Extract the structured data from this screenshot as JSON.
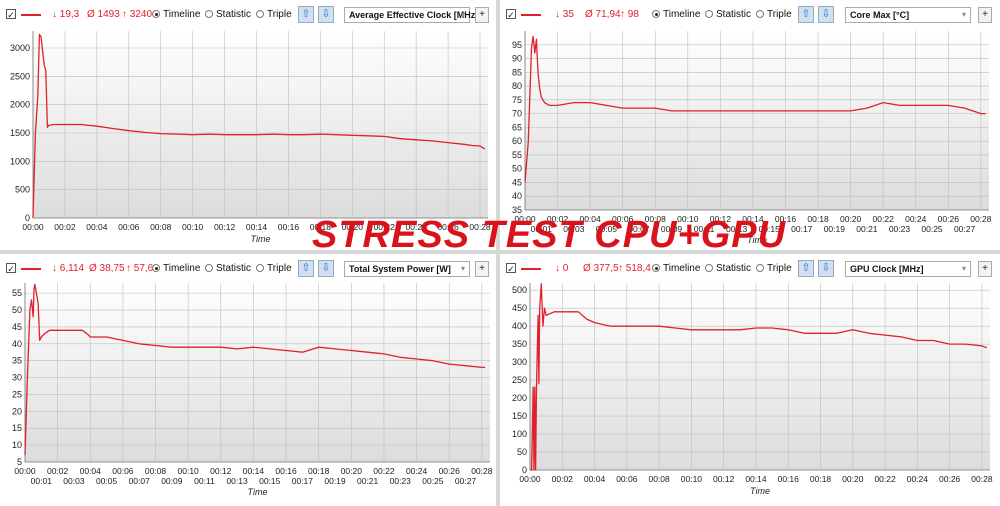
{
  "overlay_title": "STRESS TEST CPU+GPU",
  "colors": {
    "series": "#e0202a",
    "plot_bg_top": "#ffffff",
    "plot_bg_bottom": "#dcdcdc",
    "grid": "#bdbdbd"
  },
  "common": {
    "checkbox": "✓",
    "radio_timeline": "Timeline",
    "radio_statistic": "Statistic",
    "radio_triple": "Triple",
    "up_arrow": "⇧",
    "down_arrow": "⇩",
    "plus": "+",
    "chevron": "▾"
  },
  "panels": [
    {
      "stats": {
        "min": "↓ 19,3",
        "avg": "Ø 1493",
        "max": "↑ 3240"
      },
      "dropdown": "Average Effective Clock [MHz]"
    },
    {
      "stats": {
        "min": "↓ 35",
        "avg": "Ø 71,94",
        "max": "↑ 98"
      },
      "dropdown": "Core Max [°C]"
    },
    {
      "stats": {
        "min": "↓ 6,114",
        "avg": "Ø 38,75",
        "max": "↑ 57,6"
      },
      "dropdown": "Total System Power [W]"
    },
    {
      "stats": {
        "min": "↓ 0",
        "avg": "Ø 377,5",
        "max": "↑ 518,4"
      },
      "dropdown": "GPU Clock [MHz]"
    }
  ],
  "chart_data": [
    {
      "type": "line",
      "xlabel": "Time",
      "ylabel": "",
      "x_unit": "minutes",
      "xlim": [
        0,
        28.5
      ],
      "ylim": [
        0,
        3300
      ],
      "yticks": [
        0,
        500,
        1000,
        1500,
        2000,
        2500,
        3000
      ],
      "xticks_top": [
        "00:00",
        "00:02",
        "00:04",
        "00:06",
        "00:08",
        "00:10",
        "00:12",
        "00:14",
        "00:16",
        "00:18",
        "00:20",
        "00:22",
        "00:24",
        "00:26",
        "00:28"
      ],
      "xticks_bottom": [],
      "series": [
        {
          "x": [
            0,
            0.15,
            0.3,
            0.4,
            0.5,
            0.7,
            0.8,
            0.9,
            1.0,
            1.1,
            1.3,
            2,
            3,
            4,
            5,
            6,
            7,
            8,
            9,
            10,
            11,
            12,
            13,
            14,
            15,
            16,
            17,
            18,
            19,
            20,
            21,
            22,
            23,
            24,
            25,
            26,
            27,
            27.5,
            28,
            28.3
          ],
          "y": [
            0,
            1500,
            2150,
            3240,
            3200,
            2700,
            2600,
            1600,
            1640,
            1640,
            1650,
            1650,
            1650,
            1620,
            1580,
            1540,
            1510,
            1490,
            1480,
            1470,
            1480,
            1470,
            1470,
            1470,
            1480,
            1470,
            1470,
            1480,
            1470,
            1460,
            1450,
            1440,
            1400,
            1380,
            1360,
            1330,
            1300,
            1280,
            1270,
            1220
          ]
        }
      ]
    },
    {
      "type": "line",
      "xlabel": "Time",
      "ylabel": "",
      "x_unit": "minutes",
      "xlim": [
        0,
        28.5
      ],
      "ylim": [
        35,
        100
      ],
      "yticks": [
        35,
        40,
        45,
        50,
        55,
        60,
        65,
        70,
        75,
        80,
        85,
        90,
        95
      ],
      "xticks_top": [
        "00:00",
        "00:02",
        "00:04",
        "00:06",
        "00:08",
        "00:10",
        "00:12",
        "00:14",
        "00:16",
        "00:18",
        "00:20",
        "00:22",
        "00:24",
        "00:26",
        "00:28"
      ],
      "xticks_bottom": [
        "00:01",
        "00:03",
        "00:05",
        "00:07",
        "00:09",
        "00:11",
        "00:13",
        "00:15",
        "00:17",
        "00:19",
        "00:21",
        "00:23",
        "00:25",
        "00:27"
      ],
      "series": [
        {
          "x": [
            0,
            0.2,
            0.4,
            0.5,
            0.6,
            0.7,
            0.8,
            0.9,
            1.0,
            1.2,
            1.5,
            2,
            3,
            4,
            5,
            6,
            7,
            8,
            9,
            10,
            11,
            12,
            13,
            14,
            15,
            16,
            17,
            18,
            19,
            20,
            21,
            22,
            23,
            24,
            25,
            26,
            27,
            28,
            28.3
          ],
          "y": [
            45,
            60,
            94,
            98,
            92,
            97,
            85,
            79,
            76,
            74,
            73,
            73,
            74,
            74,
            73,
            72,
            72,
            72,
            71,
            71,
            71,
            71,
            71,
            71,
            71,
            71,
            71,
            71,
            71,
            71,
            72,
            74,
            73,
            73,
            73,
            73,
            72,
            70,
            70
          ]
        }
      ]
    },
    {
      "type": "line",
      "xlabel": "Time",
      "ylabel": "",
      "x_unit": "minutes",
      "xlim": [
        0,
        28.5
      ],
      "ylim": [
        5,
        58
      ],
      "yticks": [
        5,
        10,
        15,
        20,
        25,
        30,
        35,
        40,
        45,
        50,
        55
      ],
      "xticks_top": [
        "00:00",
        "00:02",
        "00:04",
        "00:06",
        "00:08",
        "00:10",
        "00:12",
        "00:14",
        "00:16",
        "00:18",
        "00:20",
        "00:22",
        "00:24",
        "00:26",
        "00:28"
      ],
      "xticks_bottom": [
        "00:01",
        "00:03",
        "00:05",
        "00:07",
        "00:09",
        "00:11",
        "00:13",
        "00:15",
        "00:17",
        "00:19",
        "00:21",
        "00:23",
        "00:25",
        "00:27"
      ],
      "series": [
        {
          "x": [
            0,
            0.15,
            0.3,
            0.4,
            0.5,
            0.55,
            0.6,
            0.7,
            0.8,
            0.9,
            1.0,
            1.2,
            1.5,
            2,
            3,
            3.5,
            3.8,
            4,
            5,
            6,
            7,
            8,
            9,
            10,
            11,
            12,
            13,
            14,
            15,
            16,
            17,
            18,
            19,
            20,
            21,
            22,
            23,
            24,
            25,
            26,
            27,
            28,
            28.2
          ],
          "y": [
            7,
            30,
            50,
            53,
            48,
            56,
            57.6,
            55,
            52,
            41,
            42,
            43,
            44,
            44,
            44,
            44,
            43,
            42,
            42,
            41,
            40,
            39.5,
            39,
            39,
            39,
            39,
            38.5,
            39,
            38.5,
            38,
            37.5,
            39,
            38.5,
            38,
            37.5,
            37,
            36,
            35.5,
            35,
            34,
            33.5,
            33,
            33
          ]
        }
      ]
    },
    {
      "type": "line",
      "xlabel": "Time",
      "ylabel": "",
      "x_unit": "minutes",
      "xlim": [
        0,
        28.5
      ],
      "ylim": [
        0,
        520
      ],
      "yticks": [
        0,
        50,
        100,
        150,
        200,
        250,
        300,
        350,
        400,
        450,
        500
      ],
      "xticks_top": [
        "00:00",
        "00:02",
        "00:04",
        "00:06",
        "00:08",
        "00:10",
        "00:12",
        "00:14",
        "00:16",
        "00:18",
        "00:20",
        "00:22",
        "00:24",
        "00:26",
        "00:28"
      ],
      "xticks_bottom": [],
      "series": [
        {
          "x": [
            0,
            0.1,
            0.2,
            0.25,
            0.3,
            0.35,
            0.4,
            0.5,
            0.55,
            0.6,
            0.7,
            0.8,
            0.9,
            1.0,
            1.5,
            2,
            3,
            3.5,
            4,
            5,
            6,
            7,
            8,
            9,
            10,
            11,
            12,
            13,
            14,
            15,
            16,
            17,
            18,
            19,
            20,
            21,
            22,
            23,
            24,
            25,
            26,
            27,
            28,
            28.3
          ],
          "y": [
            0,
            0,
            230,
            0,
            230,
            0,
            230,
            430,
            240,
            450,
            518,
            400,
            450,
            430,
            440,
            440,
            440,
            420,
            410,
            400,
            400,
            400,
            400,
            395,
            390,
            390,
            390,
            390,
            395,
            395,
            390,
            380,
            380,
            380,
            390,
            380,
            375,
            370,
            360,
            360,
            350,
            350,
            345,
            340
          ]
        }
      ]
    }
  ]
}
